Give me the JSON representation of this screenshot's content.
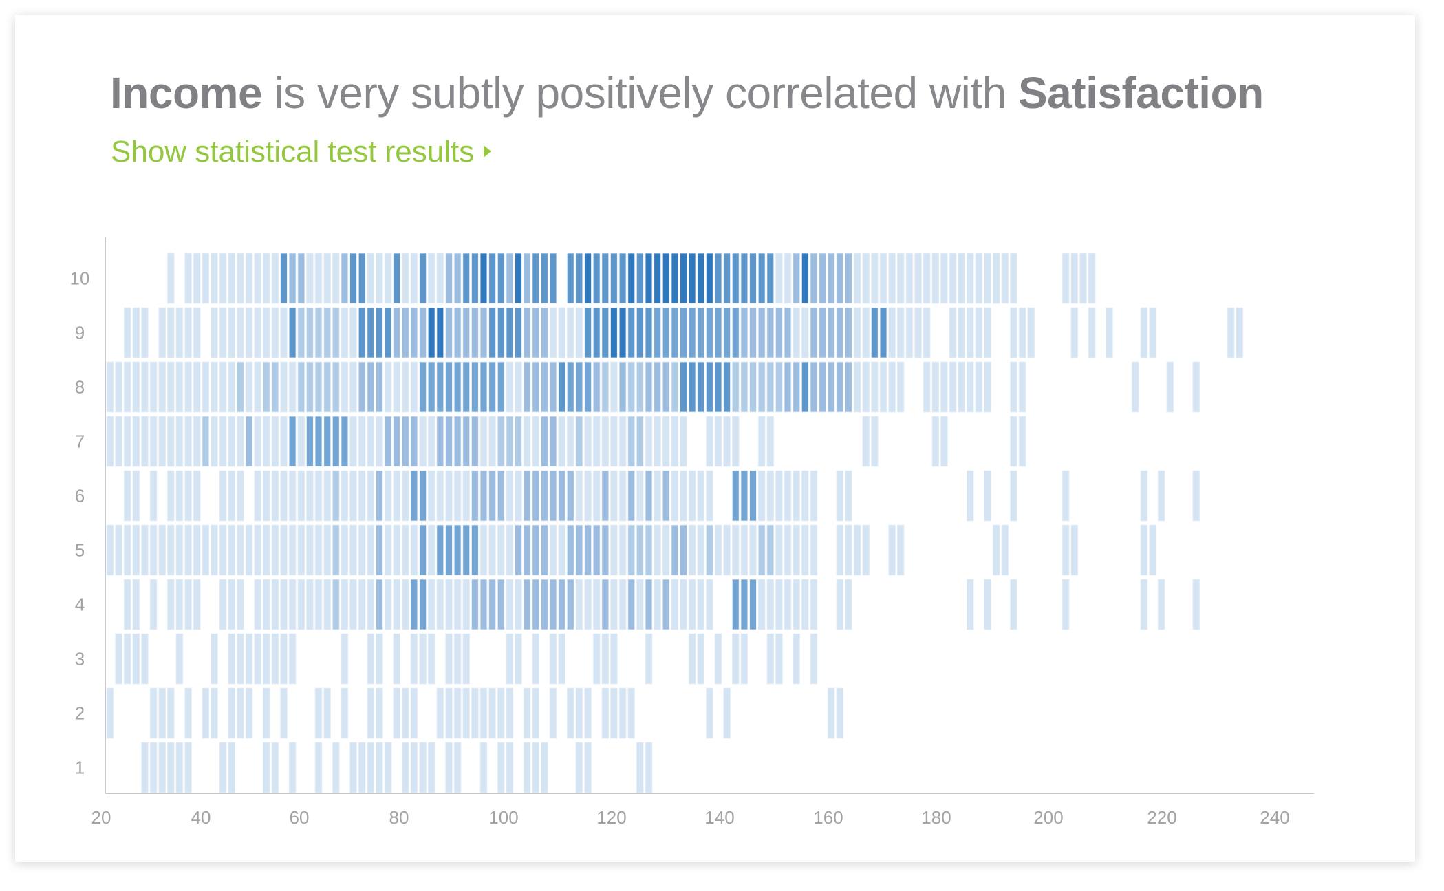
{
  "header": {
    "title_var1": "Income",
    "title_middle": " is very subtly positively correlated with ",
    "title_var2": "Satisfaction",
    "link_label": "Show statistical test results",
    "link_icon": "triangle-right-icon",
    "link_color": "#93c83e"
  },
  "chart_data": {
    "type": "heatmap",
    "title": "",
    "xlabel": "",
    "ylabel": "",
    "x_tick_labels": [
      "20",
      "40",
      "60",
      "80",
      "100",
      "120",
      "140",
      "160",
      "180",
      "200",
      "220",
      "240"
    ],
    "y_categories": [
      "1",
      "2",
      "3",
      "4",
      "5",
      "6",
      "7",
      "8",
      "9",
      "10"
    ],
    "grid": false,
    "legend": "none",
    "intensity_levels": 6,
    "colors": [
      "#ffffff",
      "#d5e4f2",
      "#b0cbe6",
      "#9bbcdf",
      "#72a5d3",
      "#5d96cb",
      "#3079be"
    ],
    "rows": {
      "10": [
        0,
        0,
        0,
        0,
        0,
        0,
        0,
        1,
        0,
        1,
        1,
        1,
        1,
        1,
        1,
        1,
        1,
        1,
        1,
        1,
        5,
        3,
        3,
        1,
        1,
        1,
        1,
        3,
        5,
        5,
        1,
        1,
        1,
        5,
        1,
        1,
        5,
        1,
        1,
        3,
        3,
        5,
        5,
        6,
        5,
        5,
        3,
        6,
        3,
        5,
        5,
        5,
        0,
        5,
        5,
        6,
        5,
        5,
        5,
        5,
        6,
        5,
        6,
        6,
        6,
        6,
        6,
        6,
        6,
        6,
        5,
        5,
        5,
        5,
        5,
        5,
        5,
        1,
        1,
        3,
        6,
        3,
        3,
        3,
        3,
        3,
        1,
        1,
        1,
        1,
        1,
        1,
        1,
        1,
        1,
        1,
        1,
        1,
        1,
        1,
        1,
        1,
        1,
        1,
        1,
        0,
        0,
        0,
        0,
        0,
        1,
        1,
        1,
        1,
        0,
        0,
        0,
        0,
        0,
        0,
        0,
        0,
        0,
        0,
        0,
        0,
        0,
        0,
        0,
        0,
        0
      ],
      "9": [
        0,
        0,
        1,
        1,
        1,
        0,
        1,
        1,
        1,
        1,
        1,
        0,
        1,
        1,
        1,
        1,
        1,
        1,
        1,
        1,
        1,
        5,
        2,
        2,
        2,
        2,
        2,
        1,
        1,
        5,
        5,
        5,
        5,
        3,
        3,
        3,
        3,
        6,
        6,
        3,
        3,
        3,
        3,
        3,
        5,
        5,
        5,
        5,
        3,
        3,
        3,
        1,
        1,
        1,
        1,
        5,
        5,
        5,
        6,
        6,
        5,
        5,
        5,
        4,
        4,
        4,
        4,
        4,
        4,
        4,
        4,
        4,
        4,
        3,
        3,
        3,
        3,
        3,
        3,
        1,
        1,
        3,
        3,
        3,
        3,
        3,
        1,
        1,
        5,
        5,
        1,
        1,
        1,
        1,
        1,
        0,
        0,
        1,
        1,
        1,
        1,
        1,
        0,
        0,
        1,
        1,
        1,
        0,
        0,
        0,
        0,
        1,
        0,
        1,
        0,
        1,
        0,
        0,
        0,
        1,
        1,
        0,
        0,
        0,
        0,
        0,
        0,
        0,
        0,
        1,
        1
      ],
      "8": [
        1,
        1,
        1,
        1,
        1,
        1,
        1,
        1,
        1,
        1,
        1,
        1,
        1,
        1,
        1,
        2,
        1,
        1,
        2,
        2,
        1,
        1,
        2,
        2,
        2,
        2,
        2,
        1,
        1,
        3,
        3,
        3,
        1,
        1,
        1,
        1,
        4,
        4,
        4,
        4,
        4,
        4,
        4,
        4,
        4,
        4,
        1,
        1,
        3,
        3,
        3,
        3,
        5,
        4,
        4,
        4,
        3,
        2,
        1,
        3,
        2,
        2,
        3,
        3,
        3,
        2,
        5,
        5,
        5,
        5,
        5,
        5,
        2,
        2,
        2,
        2,
        2,
        2,
        3,
        3,
        5,
        3,
        3,
        3,
        3,
        3,
        1,
        1,
        1,
        1,
        1,
        1,
        0,
        0,
        1,
        1,
        1,
        1,
        1,
        1,
        1,
        1,
        0,
        0,
        1,
        1,
        0,
        0,
        0,
        0,
        0,
        0,
        0,
        0,
        0,
        0,
        0,
        0,
        1,
        0,
        0,
        0,
        1,
        0,
        0,
        1,
        0,
        0,
        0,
        0,
        0
      ],
      "7": [
        1,
        1,
        1,
        1,
        1,
        1,
        1,
        1,
        1,
        1,
        1,
        2,
        1,
        1,
        1,
        1,
        3,
        1,
        1,
        1,
        1,
        4,
        1,
        4,
        4,
        4,
        4,
        4,
        1,
        1,
        1,
        1,
        3,
        3,
        3,
        3,
        1,
        1,
        3,
        3,
        3,
        3,
        3,
        1,
        1,
        2,
        2,
        2,
        1,
        1,
        3,
        3,
        1,
        1,
        2,
        1,
        1,
        1,
        1,
        1,
        2,
        2,
        1,
        1,
        1,
        1,
        1,
        0,
        0,
        1,
        1,
        1,
        1,
        0,
        0,
        1,
        1,
        0,
        0,
        0,
        0,
        0,
        0,
        0,
        0,
        0,
        0,
        1,
        1,
        0,
        0,
        0,
        0,
        0,
        0,
        1,
        1,
        0,
        0,
        0,
        0,
        0,
        0,
        0,
        1,
        1,
        0,
        0,
        0,
        0,
        0,
        0,
        0,
        0,
        0,
        0,
        0,
        0,
        0,
        0,
        0,
        0,
        0,
        0,
        0,
        0,
        0,
        0,
        0,
        0,
        0
      ],
      "6": [
        0,
        0,
        1,
        1,
        0,
        1,
        0,
        1,
        1,
        1,
        1,
        0,
        0,
        1,
        1,
        1,
        0,
        1,
        1,
        1,
        1,
        1,
        1,
        1,
        1,
        1,
        2,
        1,
        1,
        1,
        1,
        3,
        1,
        1,
        1,
        4,
        4,
        1,
        1,
        1,
        1,
        1,
        3,
        3,
        3,
        3,
        1,
        1,
        3,
        3,
        3,
        3,
        3,
        3,
        1,
        1,
        1,
        3,
        1,
        1,
        3,
        1,
        3,
        1,
        3,
        1,
        1,
        1,
        1,
        1,
        0,
        0,
        4,
        4,
        4,
        1,
        1,
        1,
        1,
        1,
        1,
        1,
        0,
        0,
        1,
        1,
        0,
        0,
        0,
        0,
        0,
        0,
        0,
        0,
        0,
        0,
        0,
        0,
        0,
        1,
        0,
        1,
        0,
        0,
        1,
        0,
        0,
        0,
        0,
        0,
        1,
        0,
        0,
        0,
        0,
        0,
        0,
        0,
        0,
        1,
        0,
        1,
        0,
        0,
        0,
        1,
        0,
        0,
        0,
        0,
        0
      ],
      "5": [
        1,
        1,
        1,
        1,
        1,
        1,
        1,
        1,
        1,
        1,
        1,
        1,
        1,
        1,
        1,
        1,
        1,
        1,
        1,
        1,
        1,
        1,
        1,
        1,
        1,
        1,
        2,
        1,
        1,
        1,
        1,
        3,
        1,
        1,
        1,
        1,
        4,
        1,
        4,
        4,
        4,
        4,
        4,
        1,
        1,
        1,
        1,
        3,
        3,
        3,
        3,
        1,
        1,
        3,
        3,
        3,
        3,
        3,
        1,
        1,
        2,
        2,
        2,
        1,
        1,
        3,
        3,
        1,
        1,
        2,
        1,
        1,
        1,
        1,
        1,
        2,
        2,
        1,
        1,
        1,
        1,
        1,
        0,
        0,
        1,
        1,
        1,
        1,
        0,
        0,
        1,
        1,
        0,
        0,
        0,
        0,
        0,
        0,
        0,
        0,
        0,
        0,
        1,
        1,
        0,
        0,
        0,
        0,
        0,
        0,
        1,
        1,
        0,
        0,
        0,
        0,
        0,
        0,
        0,
        1,
        1,
        0,
        0,
        0,
        0,
        0,
        0,
        0,
        0,
        0,
        0
      ],
      "4": [
        0,
        0,
        1,
        1,
        0,
        1,
        0,
        1,
        1,
        1,
        1,
        0,
        0,
        1,
        1,
        1,
        0,
        1,
        1,
        1,
        1,
        1,
        1,
        1,
        1,
        1,
        2,
        1,
        1,
        1,
        1,
        3,
        1,
        1,
        1,
        4,
        4,
        1,
        1,
        1,
        1,
        1,
        3,
        3,
        3,
        3,
        1,
        1,
        3,
        3,
        3,
        3,
        3,
        3,
        1,
        1,
        1,
        3,
        1,
        1,
        3,
        1,
        3,
        1,
        3,
        1,
        1,
        1,
        1,
        1,
        0,
        0,
        4,
        4,
        4,
        1,
        1,
        1,
        1,
        1,
        1,
        1,
        0,
        0,
        1,
        1,
        0,
        0,
        0,
        0,
        0,
        0,
        0,
        0,
        0,
        0,
        0,
        0,
        0,
        1,
        0,
        1,
        0,
        0,
        1,
        0,
        0,
        0,
        0,
        0,
        1,
        0,
        0,
        0,
        0,
        0,
        0,
        0,
        0,
        1,
        0,
        1,
        0,
        0,
        0,
        1,
        0,
        0,
        0,
        0,
        0
      ],
      "3": [
        0,
        1,
        1,
        1,
        1,
        0,
        0,
        0,
        1,
        0,
        0,
        0,
        1,
        0,
        1,
        1,
        1,
        1,
        1,
        1,
        1,
        1,
        0,
        0,
        0,
        0,
        0,
        1,
        0,
        0,
        1,
        1,
        0,
        1,
        0,
        1,
        1,
        1,
        0,
        1,
        1,
        1,
        0,
        0,
        0,
        0,
        1,
        1,
        0,
        1,
        0,
        1,
        1,
        0,
        0,
        0,
        1,
        1,
        1,
        0,
        0,
        0,
        1,
        0,
        0,
        0,
        0,
        1,
        1,
        0,
        1,
        0,
        1,
        1,
        0,
        0,
        1,
        1,
        0,
        1,
        0,
        1,
        0,
        0,
        0,
        0,
        0,
        0,
        0,
        0,
        0,
        0,
        0,
        0,
        0,
        0,
        0,
        0,
        0,
        0,
        0,
        0,
        0,
        0,
        0,
        0,
        0,
        0,
        0,
        0,
        0,
        0,
        0,
        0,
        0,
        0,
        0,
        0,
        0,
        0,
        0,
        0,
        0,
        0,
        0,
        0,
        0,
        0,
        0,
        0,
        0
      ],
      "2": [
        1,
        0,
        0,
        0,
        0,
        1,
        1,
        1,
        0,
        1,
        0,
        1,
        1,
        0,
        1,
        1,
        1,
        0,
        1,
        0,
        1,
        0,
        0,
        0,
        1,
        1,
        0,
        1,
        0,
        0,
        1,
        1,
        0,
        1,
        1,
        1,
        0,
        0,
        1,
        1,
        1,
        1,
        1,
        1,
        1,
        1,
        1,
        0,
        1,
        1,
        0,
        1,
        0,
        1,
        1,
        1,
        0,
        1,
        1,
        1,
        1,
        0,
        0,
        0,
        0,
        0,
        0,
        0,
        0,
        1,
        0,
        1,
        0,
        0,
        0,
        0,
        0,
        0,
        0,
        0,
        0,
        0,
        0,
        1,
        1,
        0,
        0,
        0,
        0,
        0,
        0,
        0,
        0,
        0,
        0,
        0,
        0,
        0,
        0,
        0,
        0,
        0,
        0,
        0,
        0,
        0,
        0,
        0,
        0,
        0,
        0,
        0,
        0,
        0,
        0,
        0,
        0,
        0,
        0,
        0,
        0,
        0,
        0,
        0,
        0,
        0,
        0,
        0,
        0,
        0,
        0
      ],
      "1": [
        0,
        0,
        0,
        0,
        1,
        1,
        1,
        1,
        1,
        1,
        0,
        0,
        0,
        1,
        1,
        0,
        0,
        0,
        1,
        1,
        0,
        1,
        0,
        0,
        1,
        0,
        1,
        0,
        1,
        1,
        1,
        1,
        1,
        0,
        1,
        1,
        1,
        1,
        0,
        1,
        1,
        0,
        0,
        1,
        0,
        1,
        1,
        0,
        1,
        1,
        1,
        0,
        0,
        0,
        1,
        1,
        0,
        0,
        0,
        0,
        0,
        1,
        1,
        0,
        0,
        0,
        0,
        0,
        0,
        0,
        0,
        0,
        0,
        0,
        0,
        0,
        0,
        0,
        0,
        0,
        0,
        0,
        0,
        0,
        0,
        0,
        0,
        0,
        0,
        0,
        0,
        0,
        0,
        0,
        0,
        0,
        0,
        0,
        0,
        0,
        0,
        0,
        0,
        0,
        0,
        0,
        0,
        0,
        0,
        0,
        0,
        0,
        0,
        0,
        0,
        0,
        0,
        0,
        0,
        0,
        0,
        0,
        0,
        0,
        0,
        0,
        0,
        0,
        0,
        0,
        0
      ]
    }
  }
}
